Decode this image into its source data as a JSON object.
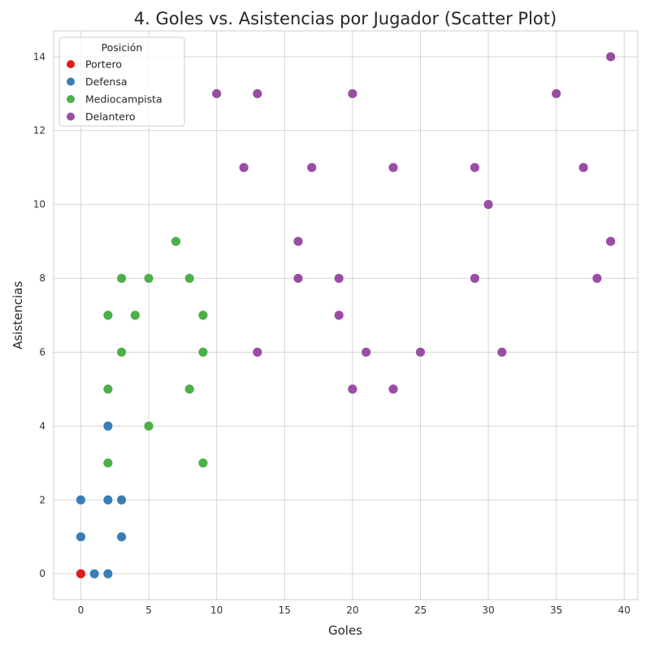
{
  "chart_data": {
    "type": "scatter",
    "title": "4. Goles vs. Asistencias por Jugador (Scatter Plot)",
    "xlabel": "Goles",
    "ylabel": "Asistencias",
    "xlim": [
      -2,
      41
    ],
    "ylim": [
      -0.7,
      14.7
    ],
    "xticks": [
      0,
      5,
      10,
      15,
      20,
      25,
      30,
      35,
      40
    ],
    "yticks": [
      0,
      2,
      4,
      6,
      8,
      10,
      12,
      14
    ],
    "grid": true,
    "legend": {
      "title": "Posición",
      "placement": "top-left"
    },
    "series": [
      {
        "name": "Portero",
        "color": "#e41a1c",
        "points": [
          [
            0,
            0
          ]
        ]
      },
      {
        "name": "Defensa",
        "color": "#377eb8",
        "points": [
          [
            0,
            2
          ],
          [
            0,
            1
          ],
          [
            1,
            0
          ],
          [
            2,
            0
          ],
          [
            2,
            2
          ],
          [
            2,
            4
          ],
          [
            3,
            2
          ],
          [
            3,
            1
          ]
        ]
      },
      {
        "name": "Mediocampista",
        "color": "#4daf4a",
        "points": [
          [
            2,
            7
          ],
          [
            2,
            5
          ],
          [
            2,
            3
          ],
          [
            3,
            8
          ],
          [
            3,
            6
          ],
          [
            4,
            7
          ],
          [
            5,
            8
          ],
          [
            5,
            4
          ],
          [
            7,
            9
          ],
          [
            8,
            8
          ],
          [
            8,
            5
          ],
          [
            9,
            7
          ],
          [
            9,
            6
          ],
          [
            9,
            3
          ]
        ]
      },
      {
        "name": "Delantero",
        "color": "#984ea3",
        "points": [
          [
            10,
            13
          ],
          [
            12,
            11
          ],
          [
            13,
            13
          ],
          [
            13,
            6
          ],
          [
            16,
            9
          ],
          [
            16,
            8
          ],
          [
            17,
            11
          ],
          [
            19,
            8
          ],
          [
            19,
            7
          ],
          [
            20,
            13
          ],
          [
            20,
            5
          ],
          [
            21,
            6
          ],
          [
            23,
            11
          ],
          [
            23,
            5
          ],
          [
            25,
            6
          ],
          [
            29,
            11
          ],
          [
            29,
            8
          ],
          [
            30,
            10
          ],
          [
            31,
            6
          ],
          [
            35,
            13
          ],
          [
            37,
            11
          ],
          [
            38,
            8
          ],
          [
            39,
            14
          ],
          [
            39,
            9
          ]
        ]
      }
    ]
  }
}
